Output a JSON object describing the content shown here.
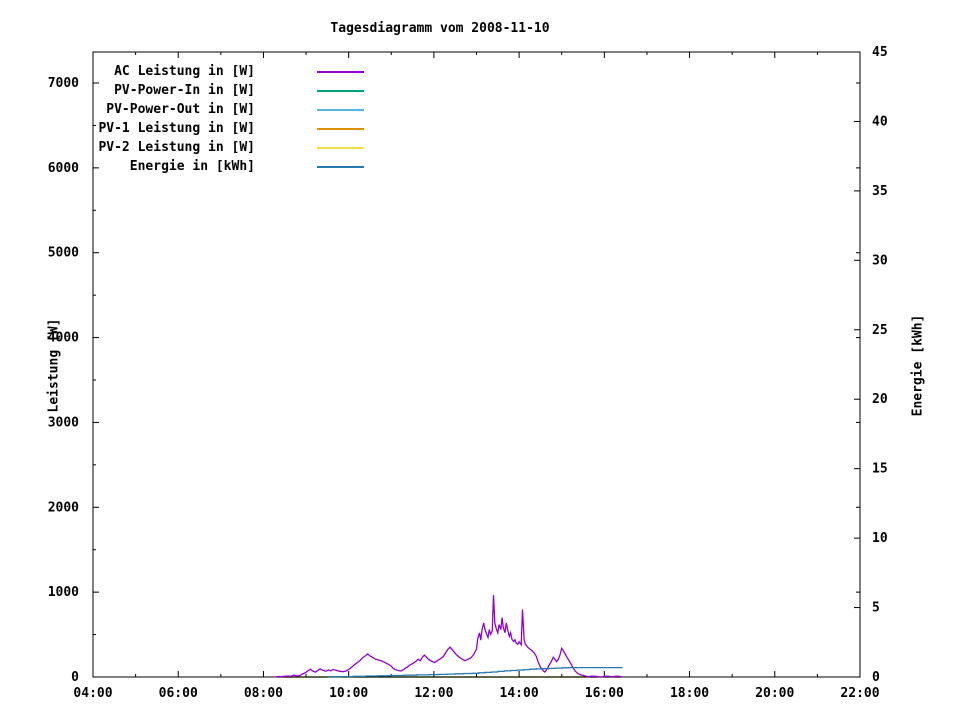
{
  "chart_data": {
    "type": "line",
    "title": "Tagesdiagramm vom 2008-11-10",
    "grid": false,
    "legend_position": "top-left",
    "x_axis": {
      "label": "",
      "range_hours": [
        4,
        22
      ],
      "tick_hours": [
        4,
        6,
        8,
        10,
        12,
        14,
        16,
        18,
        20,
        22
      ],
      "tick_labels": [
        "04:00",
        "06:00",
        "08:00",
        "10:00",
        "12:00",
        "14:00",
        "16:00",
        "18:00",
        "20:00",
        "22:00"
      ],
      "minor_tick_hours": [
        5,
        7,
        9,
        11,
        13,
        15,
        17,
        19,
        21
      ]
    },
    "y_left": {
      "label": "Leistung [W]",
      "range": [
        0,
        7365
      ],
      "ticks": [
        0,
        1000,
        2000,
        3000,
        4000,
        5000,
        6000,
        7000
      ],
      "minor_step": 500
    },
    "y_right": {
      "label": "Energie [kWh]",
      "range": [
        0,
        45
      ],
      "ticks": [
        0,
        5,
        10,
        15,
        20,
        25,
        30,
        35,
        40,
        45
      ]
    },
    "legend": [
      {
        "label": "AC Leistung in [W]",
        "color": "#9400d3"
      },
      {
        "label": "PV-Power-In in [W]",
        "color": "#00a183"
      },
      {
        "label": "PV-Power-Out in [W]",
        "color": "#56b4e9"
      },
      {
        "label": "PV-1 Leistung in [W]",
        "color": "#db9005"
      },
      {
        "label": "PV-2 Leistung in [W]",
        "color": "#ede04a"
      },
      {
        "label": "Energie in [kWh]",
        "color": "#2779b0"
      }
    ],
    "series": [
      {
        "name": "PV-Power-In in [W]",
        "color": "#00a183",
        "axis": "left",
        "style": "line",
        "all_zero": true,
        "points": [
          [
            8.3,
            0
          ],
          [
            16.4,
            0
          ]
        ]
      },
      {
        "name": "PV-Power-Out in [W]",
        "color": "#56b4e9",
        "axis": "left",
        "style": "line",
        "all_zero": true,
        "points": [
          [
            8.3,
            0
          ],
          [
            16.4,
            0
          ]
        ]
      },
      {
        "name": "PV-1 Leistung in [W]",
        "color": "#db9005",
        "axis": "left",
        "style": "line",
        "all_zero": true,
        "points": [
          [
            8.3,
            0
          ],
          [
            16.4,
            0
          ]
        ]
      },
      {
        "name": "PV-2 Leistung in [W]",
        "color": "#ede04a",
        "axis": "left",
        "style": "line",
        "all_zero": true,
        "points": [
          [
            8.3,
            0
          ],
          [
            16.4,
            0
          ]
        ]
      },
      {
        "name": "AC Leistung in [W]",
        "color": "#9400d3",
        "axis": "left",
        "style": "line",
        "all_zero": false,
        "points": [
          [
            8.25,
            0
          ],
          [
            8.35,
            6
          ],
          [
            8.42,
            3
          ],
          [
            8.5,
            8
          ],
          [
            8.58,
            12
          ],
          [
            8.65,
            8
          ],
          [
            8.72,
            22
          ],
          [
            8.78,
            12
          ],
          [
            8.85,
            18
          ],
          [
            8.92,
            35
          ],
          [
            9.0,
            55
          ],
          [
            9.05,
            75
          ],
          [
            9.1,
            92
          ],
          [
            9.15,
            72
          ],
          [
            9.22,
            58
          ],
          [
            9.28,
            80
          ],
          [
            9.33,
            95
          ],
          [
            9.4,
            78
          ],
          [
            9.47,
            68
          ],
          [
            9.53,
            85
          ],
          [
            9.58,
            72
          ],
          [
            9.63,
            90
          ],
          [
            9.7,
            80
          ],
          [
            9.78,
            68
          ],
          [
            9.87,
            62
          ],
          [
            9.95,
            72
          ],
          [
            10.02,
            95
          ],
          [
            10.08,
            120
          ],
          [
            10.15,
            150
          ],
          [
            10.22,
            175
          ],
          [
            10.28,
            200
          ],
          [
            10.33,
            228
          ],
          [
            10.4,
            252
          ],
          [
            10.45,
            272
          ],
          [
            10.5,
            248
          ],
          [
            10.57,
            228
          ],
          [
            10.63,
            210
          ],
          [
            10.7,
            200
          ],
          [
            10.78,
            188
          ],
          [
            10.85,
            172
          ],
          [
            10.92,
            152
          ],
          [
            11.0,
            128
          ],
          [
            11.05,
            100
          ],
          [
            11.1,
            86
          ],
          [
            11.17,
            76
          ],
          [
            11.23,
            72
          ],
          [
            11.3,
            92
          ],
          [
            11.37,
            115
          ],
          [
            11.43,
            138
          ],
          [
            11.5,
            158
          ],
          [
            11.57,
            182
          ],
          [
            11.63,
            208
          ],
          [
            11.68,
            192
          ],
          [
            11.73,
            235
          ],
          [
            11.78,
            258
          ],
          [
            11.83,
            232
          ],
          [
            11.88,
            205
          ],
          [
            11.95,
            185
          ],
          [
            12.02,
            170
          ],
          [
            12.08,
            192
          ],
          [
            12.15,
            215
          ],
          [
            12.22,
            242
          ],
          [
            12.28,
            288
          ],
          [
            12.33,
            328
          ],
          [
            12.38,
            352
          ],
          [
            12.43,
            322
          ],
          [
            12.48,
            292
          ],
          [
            12.53,
            262
          ],
          [
            12.6,
            232
          ],
          [
            12.67,
            208
          ],
          [
            12.73,
            192
          ],
          [
            12.8,
            208
          ],
          [
            12.87,
            225
          ],
          [
            12.93,
            262
          ],
          [
            13.0,
            330
          ],
          [
            13.03,
            455
          ],
          [
            13.07,
            520
          ],
          [
            13.1,
            435
          ],
          [
            13.13,
            555
          ],
          [
            13.17,
            638
          ],
          [
            13.2,
            560
          ],
          [
            13.23,
            515
          ],
          [
            13.27,
            465
          ],
          [
            13.3,
            558
          ],
          [
            13.33,
            502
          ],
          [
            13.37,
            545
          ],
          [
            13.4,
            968
          ],
          [
            13.43,
            640
          ],
          [
            13.47,
            558
          ],
          [
            13.5,
            520
          ],
          [
            13.53,
            618
          ],
          [
            13.57,
            560
          ],
          [
            13.6,
            700
          ],
          [
            13.63,
            585
          ],
          [
            13.67,
            522
          ],
          [
            13.7,
            638
          ],
          [
            13.73,
            560
          ],
          [
            13.77,
            480
          ],
          [
            13.8,
            522
          ],
          [
            13.83,
            445
          ],
          [
            13.87,
            418
          ],
          [
            13.9,
            440
          ],
          [
            13.93,
            402
          ],
          [
            13.97,
            385
          ],
          [
            14.0,
            415
          ],
          [
            14.05,
            378
          ],
          [
            14.08,
            795
          ],
          [
            14.12,
            432
          ],
          [
            14.15,
            385
          ],
          [
            14.2,
            352
          ],
          [
            14.25,
            330
          ],
          [
            14.3,
            312
          ],
          [
            14.35,
            285
          ],
          [
            14.4,
            245
          ],
          [
            14.45,
            172
          ],
          [
            14.5,
            118
          ],
          [
            14.55,
            82
          ],
          [
            14.6,
            58
          ],
          [
            14.65,
            88
          ],
          [
            14.7,
            135
          ],
          [
            14.75,
            178
          ],
          [
            14.8,
            232
          ],
          [
            14.84,
            210
          ],
          [
            14.88,
            182
          ],
          [
            14.92,
            205
          ],
          [
            14.96,
            262
          ],
          [
            15.0,
            338
          ],
          [
            15.04,
            308
          ],
          [
            15.08,
            272
          ],
          [
            15.12,
            235
          ],
          [
            15.17,
            195
          ],
          [
            15.22,
            152
          ],
          [
            15.27,
            105
          ],
          [
            15.32,
            68
          ],
          [
            15.38,
            40
          ],
          [
            15.45,
            25
          ],
          [
            15.55,
            12
          ],
          [
            15.62,
            2
          ],
          [
            15.7,
            10
          ],
          [
            15.8,
            8
          ],
          [
            15.88,
            0
          ],
          [
            15.95,
            2
          ],
          [
            16.02,
            10
          ],
          [
            16.1,
            8
          ],
          [
            16.18,
            2
          ],
          [
            16.3,
            10
          ],
          [
            16.38,
            6
          ],
          [
            16.42,
            0
          ]
        ]
      },
      {
        "name": "Energie in [kWh]",
        "color": "#2779b0",
        "axis": "right",
        "style": "steps",
        "all_zero": false,
        "points": [
          [
            9.5,
            0.02
          ],
          [
            9.8,
            0.03
          ],
          [
            10.1,
            0.05
          ],
          [
            10.4,
            0.07
          ],
          [
            10.7,
            0.09
          ],
          [
            11.0,
            0.11
          ],
          [
            11.3,
            0.13
          ],
          [
            11.6,
            0.15
          ],
          [
            11.9,
            0.17
          ],
          [
            12.1,
            0.19
          ],
          [
            12.3,
            0.21
          ],
          [
            12.5,
            0.23
          ],
          [
            12.7,
            0.25
          ],
          [
            12.9,
            0.27
          ],
          [
            13.05,
            0.3
          ],
          [
            13.2,
            0.33
          ],
          [
            13.35,
            0.36
          ],
          [
            13.5,
            0.4
          ],
          [
            13.65,
            0.44
          ],
          [
            13.8,
            0.47
          ],
          [
            13.95,
            0.5
          ],
          [
            14.1,
            0.53
          ],
          [
            14.25,
            0.56
          ],
          [
            14.4,
            0.58
          ],
          [
            14.55,
            0.6
          ],
          [
            14.7,
            0.62
          ],
          [
            14.85,
            0.64
          ],
          [
            15.0,
            0.66
          ],
          [
            15.15,
            0.68
          ],
          [
            16.43,
            0.68
          ]
        ]
      }
    ]
  }
}
